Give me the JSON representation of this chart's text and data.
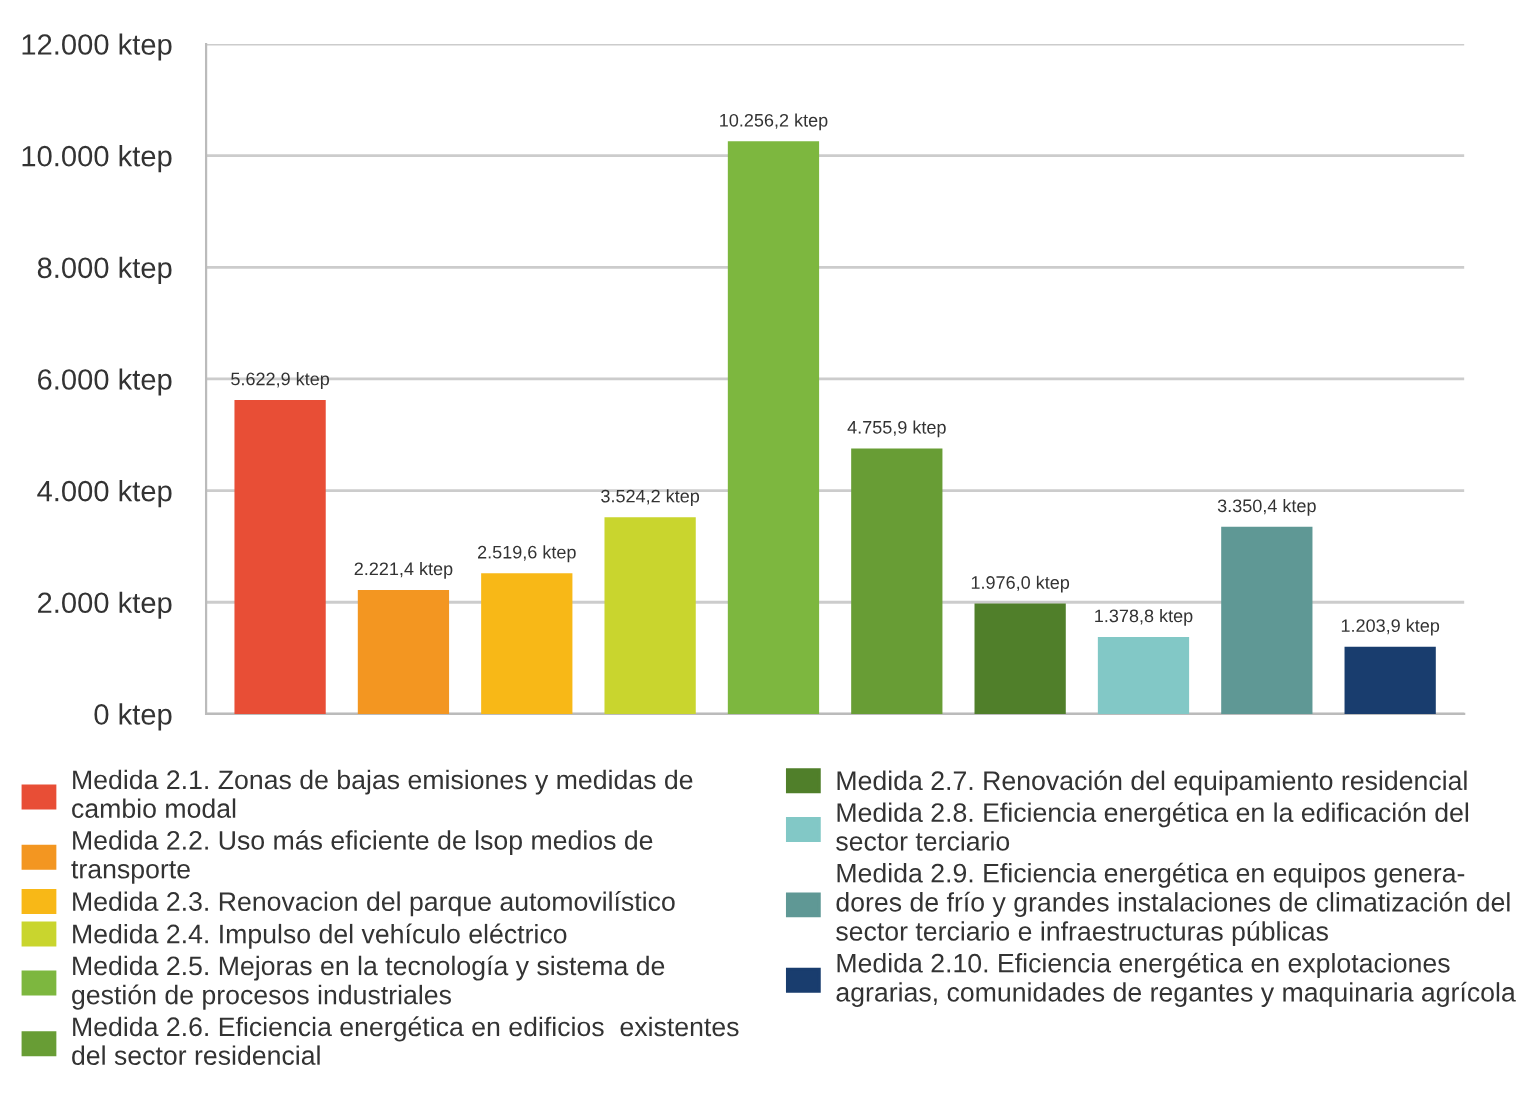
{
  "chart_data": {
    "type": "bar",
    "categories": [
      null,
      null,
      null,
      null,
      null,
      null,
      null,
      null,
      null,
      null
    ],
    "series": [
      {
        "name": "Medida 2.1. Zonas de bajas emisiones y medidas de\ncambio modal",
        "color": "#e84e36",
        "values": [
          5622.9,
          null,
          null,
          null,
          null,
          null,
          null,
          null,
          null,
          null
        ],
        "value_labels": [
          "5.622,9 ktep",
          null,
          null,
          null,
          null,
          null,
          null,
          null,
          null,
          null
        ]
      },
      {
        "name": "Medida 2.2. Uso más eficiente de lsop medios de\ntransporte",
        "color": "#f39621",
        "values": [
          null,
          2221.4,
          null,
          null,
          null,
          null,
          null,
          null,
          null,
          null
        ],
        "value_labels": [
          null,
          "2.221,4 ktep",
          null,
          null,
          null,
          null,
          null,
          null,
          null,
          null
        ]
      },
      {
        "name": "Medida 2.3. Renovacion del parque automovilístico",
        "color": "#f8b817",
        "values": [
          null,
          null,
          2519.6,
          null,
          null,
          null,
          null,
          null,
          null,
          null
        ],
        "value_labels": [
          null,
          null,
          "2.519,6 ktep",
          null,
          null,
          null,
          null,
          null,
          null,
          null
        ]
      },
      {
        "name": "Medida 2.4. Impulso del vehículo eléctrico",
        "color": "#c9d52e",
        "values": [
          null,
          null,
          null,
          3524.2,
          null,
          null,
          null,
          null,
          null,
          null
        ],
        "value_labels": [
          null,
          null,
          null,
          "3.524,2 ktep",
          null,
          null,
          null,
          null,
          null,
          null
        ]
      },
      {
        "name": "Medida 2.5. Mejoras en la tecnología y sistema de\ngestión de procesos industriales",
        "color": "#7db73f",
        "values": [
          null,
          null,
          null,
          null,
          10256.2,
          null,
          null,
          null,
          null,
          null
        ],
        "value_labels": [
          null,
          null,
          null,
          null,
          "10.256,2 ktep",
          null,
          null,
          null,
          null,
          null
        ]
      },
      {
        "name": "Medida 2.6. Eficiencia energética en edificios  existentes\ndel sector residencial",
        "color": "#689d35",
        "values": [
          null,
          null,
          null,
          null,
          null,
          4755.9,
          null,
          null,
          null,
          null
        ],
        "value_labels": [
          null,
          null,
          null,
          null,
          null,
          "4.755,9 ktep",
          null,
          null,
          null,
          null
        ]
      },
      {
        "name": "Medida 2.7. Renovación del equipamiento residencial",
        "color": "#507f2a",
        "values": [
          null,
          null,
          null,
          null,
          null,
          null,
          1976.0,
          null,
          null,
          null
        ],
        "value_labels": [
          null,
          null,
          null,
          null,
          null,
          null,
          "1.976,0 ktep",
          null,
          null,
          null
        ]
      },
      {
        "name": "Medida 2.8. Eficiencia energética en la edificación del\nsector terciario",
        "color": "#82c8c6",
        "values": [
          null,
          null,
          null,
          null,
          null,
          null,
          null,
          1378.8,
          null,
          null
        ],
        "value_labels": [
          null,
          null,
          null,
          null,
          null,
          null,
          null,
          "1.378,8 ktep",
          null,
          null
        ]
      },
      {
        "name": "Medida 2.9. Eficiencia energética en equipos genera-\ndores de frío y grandes instalaciones de climatización del\nsector terciario e infraestructuras públicas",
        "color": "#5f9895",
        "values": [
          null,
          null,
          null,
          null,
          null,
          null,
          null,
          null,
          3350.4,
          null
        ],
        "value_labels": [
          null,
          null,
          null,
          null,
          null,
          null,
          null,
          null,
          "3.350,4 ktep",
          null
        ]
      },
      {
        "name": "Medida 2.10. Eficiencia energética en explotaciones\nagrarias, comunidades de regantes y maquinaria agrícola",
        "color": "#193d6e",
        "values": [
          null,
          null,
          null,
          null,
          null,
          null,
          null,
          null,
          null,
          1203.9
        ],
        "value_labels": [
          null,
          null,
          null,
          null,
          null,
          null,
          null,
          null,
          null,
          "1.203,9 ktep"
        ]
      }
    ],
    "ylim": [
      0,
      12000
    ],
    "yticks": [
      {
        "value": 0,
        "label": "0 ktep"
      },
      {
        "value": 2000,
        "label": "2.000 ktep"
      },
      {
        "value": 4000,
        "label": "4.000 ktep"
      },
      {
        "value": 6000,
        "label": "6.000 ktep"
      },
      {
        "value": 8000,
        "label": "8.000 ktep"
      },
      {
        "value": 10000,
        "label": "10.000 ktep"
      },
      {
        "value": 12000,
        "label": "12.000 ktep"
      }
    ],
    "grid": "y",
    "legend": "bottom"
  }
}
